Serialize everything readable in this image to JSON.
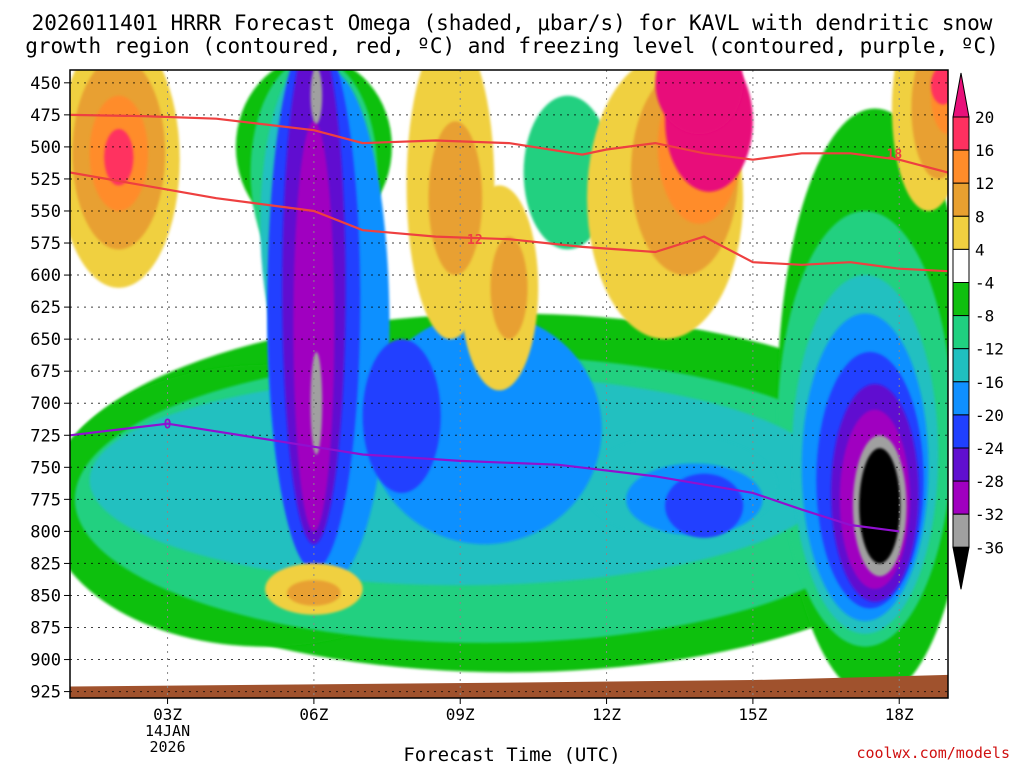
{
  "title_line1": "2026011401 HRRR Forecast Omega (shaded, μbar/s) for KAVL with dendritic snow",
  "title_line2": "growth region (contoured, red, ºC) and freezing level (contoured, purple, ºC)",
  "credit": "coolwx.com/models",
  "chart_data": {
    "type": "heatmap",
    "xlabel": "Forecast Time (UTC)",
    "ylabel": "",
    "x_ticks": [
      "03Z",
      "06Z",
      "09Z",
      "12Z",
      "15Z",
      "18Z"
    ],
    "x_tick_hours": [
      3,
      6,
      9,
      12,
      15,
      18
    ],
    "x_date_label": [
      "14JAN",
      "2026"
    ],
    "xlim_hours": [
      1,
      19
    ],
    "y_ticks": [
      450,
      475,
      500,
      525,
      550,
      575,
      600,
      625,
      650,
      675,
      700,
      725,
      750,
      775,
      800,
      825,
      850,
      875,
      900,
      925
    ],
    "ylim_hpa": [
      440,
      930
    ],
    "grid": true,
    "colorbar": {
      "levels": [
        20,
        16,
        12,
        8,
        4,
        -4,
        -8,
        -12,
        -16,
        -20,
        -24,
        -28,
        -32,
        -36
      ],
      "colors": [
        "#ff3060",
        "#ff8c2a",
        "#e8a030",
        "#f0d040",
        "#ffffff",
        "#10c010",
        "#20d080",
        "#20c0c0",
        "#1090ff",
        "#2040ff",
        "#6010d0",
        "#a000c0",
        "#a0a0a0",
        "#000000"
      ],
      "top_color": "#e8107a",
      "bottom_color": "#000000"
    },
    "contours": {
      "dgz_minus12": {
        "label": "12",
        "color": "#ee4040",
        "points": [
          [
            1,
            520
          ],
          [
            2.5,
            530
          ],
          [
            4,
            540
          ],
          [
            6,
            550
          ],
          [
            7,
            565
          ],
          [
            8.5,
            570
          ],
          [
            10,
            572
          ],
          [
            11.5,
            578
          ],
          [
            13,
            582
          ],
          [
            14,
            570
          ],
          [
            15,
            590
          ],
          [
            16,
            592
          ],
          [
            17,
            590
          ],
          [
            18,
            595
          ],
          [
            19,
            597
          ]
        ]
      },
      "dgz_minus18": {
        "label": "18",
        "color": "#ee4040",
        "points": [
          [
            1,
            475
          ],
          [
            2.5,
            476
          ],
          [
            4,
            478
          ],
          [
            6,
            487
          ],
          [
            7,
            497
          ],
          [
            8.5,
            495
          ],
          [
            10,
            497
          ],
          [
            11.5,
            506
          ],
          [
            12,
            502
          ],
          [
            13,
            497
          ],
          [
            14,
            505
          ],
          [
            15,
            510
          ],
          [
            16,
            505
          ],
          [
            17,
            505
          ],
          [
            18,
            510
          ],
          [
            19,
            520
          ]
        ]
      },
      "freezing_level_0": {
        "label": "0",
        "color": "#9010d0",
        "points": [
          [
            1,
            725
          ],
          [
            3,
            716
          ],
          [
            5,
            728
          ],
          [
            7,
            740
          ],
          [
            9,
            745
          ],
          [
            11,
            748
          ],
          [
            13,
            757
          ],
          [
            15,
            770
          ],
          [
            16,
            783
          ],
          [
            17,
            795
          ],
          [
            18,
            800
          ]
        ]
      }
    },
    "features": [
      {
        "name": "strong ascent core",
        "time_h": 17.5,
        "pressure": 780,
        "omega_min": -40
      },
      {
        "name": "ascent column",
        "time_h": 6,
        "pressure": 660,
        "omega_min": -32
      },
      {
        "name": "upper sinking max",
        "time_h": 14,
        "pressure": 480,
        "omega_max": 20
      },
      {
        "name": "sinking lobe",
        "time_h": 2,
        "pressure": 510,
        "omega_max": 17
      },
      {
        "name": "upper-right sinking",
        "time_h": 18.6,
        "pressure": 460,
        "omega_max": 20
      },
      {
        "name": "low-level sinking",
        "time_h": 6,
        "pressure": 845,
        "omega_max": 8
      }
    ]
  }
}
